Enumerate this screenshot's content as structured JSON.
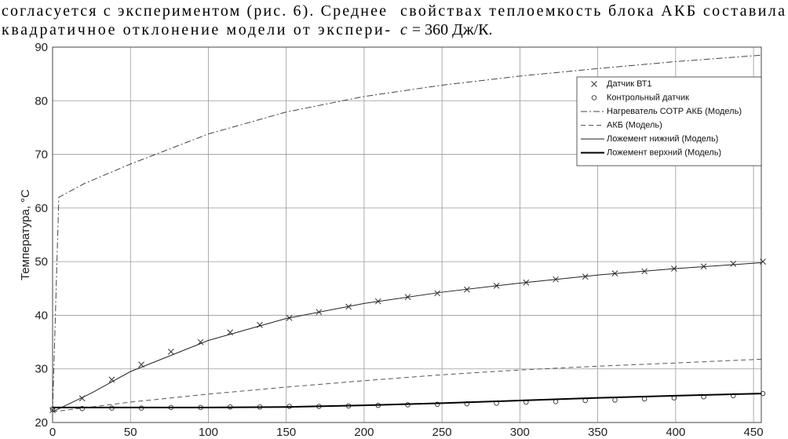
{
  "text": {
    "left": [
      "согласуется с экспериментом (рис. 6). Среднее",
      "квадратичное отклонение модели от экспери-"
    ],
    "right": [
      "свойствах теплоемкость блока АКБ составила"
    ],
    "formula": {
      "var": "c",
      "rest": "= 360 Дж/К."
    }
  },
  "chart_data": {
    "type": "line",
    "ylabel": "Температура, °С",
    "xlim": [
      0,
      455
    ],
    "ylim": [
      20,
      90
    ],
    "xticks": [
      0,
      50,
      100,
      150,
      200,
      250,
      300,
      350,
      400,
      450
    ],
    "yticks": [
      20,
      30,
      40,
      50,
      60,
      70,
      80,
      90
    ],
    "grid": true,
    "legend": "upper right",
    "series": [
      {
        "name": "Датчик ВТ1",
        "color": "#333333",
        "marker": "x",
        "x": [
          0,
          19,
          38,
          57,
          76,
          95,
          114,
          133,
          152,
          171,
          190,
          209,
          228,
          247,
          266,
          285,
          304,
          323,
          342,
          361,
          380,
          399,
          418,
          437,
          456
        ],
        "values": [
          22.3,
          24.5,
          28,
          30.8,
          33.2,
          35,
          36.8,
          38.2,
          39.5,
          40.6,
          41.6,
          42.6,
          43.4,
          44.1,
          44.8,
          45.5,
          46.1,
          46.7,
          47.2,
          47.8,
          48.2,
          48.7,
          49.1,
          49.6,
          50
        ]
      },
      {
        "name": "Контрольный датчик",
        "color": "#333333",
        "marker": "o",
        "x": [
          0,
          19,
          38,
          57,
          76,
          95,
          114,
          133,
          152,
          171,
          190,
          209,
          228,
          247,
          266,
          285,
          304,
          323,
          342,
          361,
          380,
          399,
          418,
          437,
          456
        ],
        "values": [
          22.5,
          22.6,
          22.7,
          22.7,
          22.8,
          22.8,
          22.9,
          22.9,
          23,
          23,
          23.1,
          23.2,
          23.3,
          23.4,
          23.5,
          23.6,
          23.8,
          23.9,
          24.1,
          24.2,
          24.4,
          24.6,
          24.8,
          25,
          25.4
        ]
      },
      {
        "name": "Нагреватель СОТР АКБ (Модель)",
        "color": "#444444",
        "dash": "dash-dot",
        "width": 1,
        "x": [
          0,
          4,
          20,
          50,
          100,
          150,
          200,
          250,
          300,
          350,
          400,
          455
        ],
        "values": [
          22,
          62,
          64.5,
          68.2,
          73.8,
          77.9,
          80.8,
          82.9,
          84.6,
          86,
          87.3,
          88.5
        ]
      },
      {
        "name": "АКБ (Модель)",
        "color": "#555555",
        "dash": "dash",
        "width": 1,
        "x": [
          0,
          50,
          100,
          150,
          200,
          250,
          300,
          350,
          400,
          455
        ],
        "values": [
          22,
          23.8,
          25.3,
          26.6,
          27.8,
          28.9,
          29.8,
          30.5,
          31.1,
          31.8
        ]
      },
      {
        "name": "Ложемент нижний (Модель)",
        "color": "#222222",
        "width": 1,
        "x": [
          0,
          25,
          50,
          100,
          150,
          200,
          250,
          300,
          350,
          400,
          455
        ],
        "values": [
          22,
          25.5,
          29.5,
          35.3,
          39.4,
          42.2,
          44.3,
          46,
          47.5,
          48.7,
          49.8
        ]
      },
      {
        "name": "Ложемент верхний (Модель)",
        "color": "#000000",
        "width": 2,
        "x": [
          0,
          50,
          100,
          150,
          200,
          250,
          300,
          350,
          400,
          455
        ],
        "values": [
          22.8,
          22.8,
          22.8,
          22.9,
          23.2,
          23.6,
          24.1,
          24.6,
          25,
          25.4
        ]
      }
    ]
  }
}
